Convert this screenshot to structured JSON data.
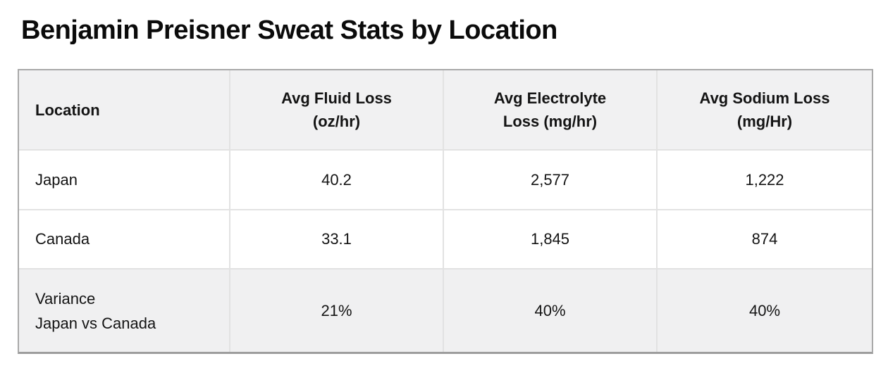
{
  "page": {
    "title": "Benjamin Preisner Sweat Stats by Location"
  },
  "colors": {
    "page_bg": "#ffffff",
    "title_text": "#0b0b0b",
    "cell_text": "#141414",
    "header_bg": "#f1f1f2",
    "variance_row_bg": "#f0f0f1",
    "inner_border": "#e2e2e2",
    "outer_border": "#a9a9a9",
    "bottom_border": "#9d9d9d"
  },
  "table": {
    "header": [
      {
        "lines": [
          "Location"
        ]
      },
      {
        "lines": [
          "Avg Fluid Loss",
          "(oz/hr)"
        ]
      },
      {
        "lines": [
          "Avg Electrolyte",
          "Loss (mg/hr)"
        ]
      },
      {
        "lines": [
          "Avg Sodium Loss",
          "(mg/Hr)"
        ]
      }
    ],
    "rows": [
      {
        "label_lines": [
          "Japan"
        ],
        "values": [
          "40.2",
          "2,577",
          "1,222"
        ]
      },
      {
        "label_lines": [
          "Canada"
        ],
        "values": [
          "33.1",
          "1,845",
          "874"
        ]
      },
      {
        "label_lines": [
          "Variance",
          "Japan vs Canada"
        ],
        "values": [
          "21%",
          "40%",
          "40%"
        ]
      }
    ]
  }
}
